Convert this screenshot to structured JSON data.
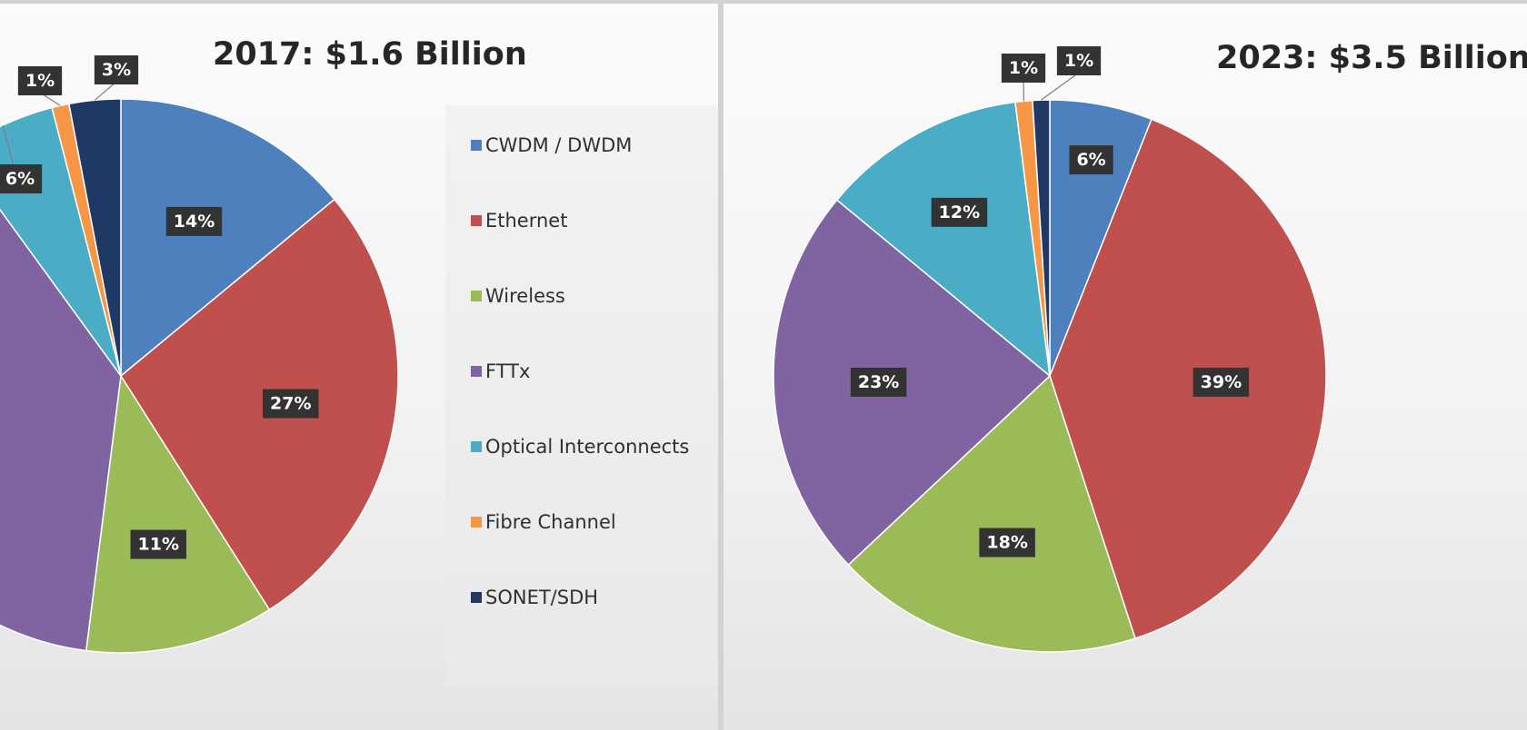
{
  "colors": {
    "CWDM / DWDM": "#4e80bd",
    "Ethernet": "#c0504d",
    "Wireless": "#9bbb59",
    "FTTx": "#8064a2",
    "Optical Interconnects": "#4bacc6",
    "Fibre Channel": "#f79646",
    "SONET/SDH": "#1f3864"
  },
  "chart_data": [
    {
      "type": "pie",
      "title": "2017: $1.6 Billion",
      "categories": [
        "CWDM / DWDM",
        "Ethernet",
        "Wireless",
        "FTTx",
        "Optical Interconnects",
        "Fibre Channel",
        "SONET/SDH"
      ],
      "values": [
        14,
        27,
        11,
        38,
        6,
        1,
        3
      ],
      "data_labels": [
        "14%",
        "27%",
        "11%",
        "",
        "6%",
        "1%",
        "3%"
      ],
      "legend": {
        "position": "right",
        "entries": [
          "CWDM / DWDM",
          "Ethernet",
          "Wireless",
          "FTTx",
          "Optical Interconnects",
          "Fibre Channel",
          "SONET/SDH"
        ]
      }
    },
    {
      "type": "pie",
      "title": "2023: $3.5 Billion",
      "categories": [
        "CWDM / DWDM",
        "Ethernet",
        "Wireless",
        "FTTx",
        "Optical Interconnects",
        "Fibre Channel",
        "SONET/SDH"
      ],
      "values": [
        6,
        39,
        18,
        23,
        12,
        1,
        1
      ],
      "data_labels": [
        "6%",
        "39%",
        "18%",
        "23%",
        "12%",
        "1%",
        "1%"
      ]
    }
  ]
}
